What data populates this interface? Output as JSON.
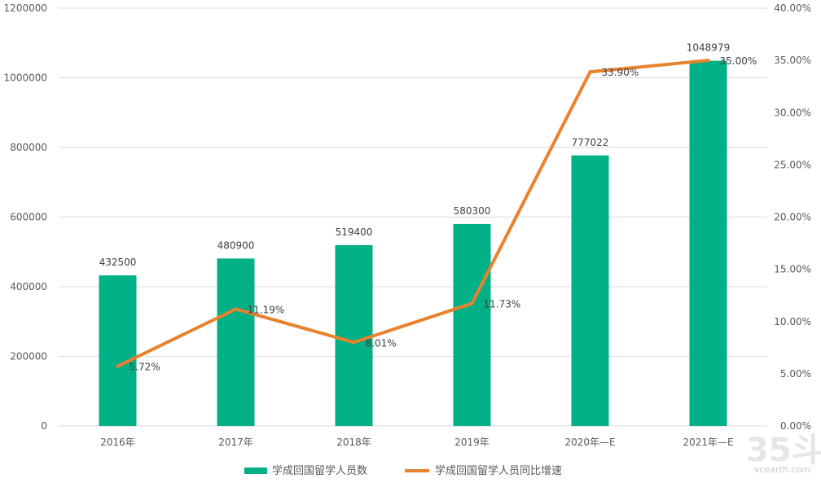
{
  "chart_data": {
    "type": "bar+line",
    "categories": [
      "2016年",
      "2017年",
      "2018年",
      "2019年",
      "2020年—E",
      "2021年—E"
    ],
    "series": [
      {
        "name": "学成回国留学人员数",
        "type": "bar",
        "axis": "left",
        "color": "#00B086",
        "values": [
          432500,
          480900,
          519400,
          580300,
          777022,
          1048979
        ],
        "labels": [
          "432500",
          "480900",
          "519400",
          "580300",
          "777022",
          "1048979"
        ]
      },
      {
        "name": "学成回国留学人员同比增速",
        "type": "line",
        "axis": "right",
        "color": "#E8822C",
        "values": [
          5.72,
          11.19,
          8.01,
          11.73,
          33.9,
          35.0
        ],
        "labels": [
          "5.72%",
          "11.19%",
          "8.01%",
          "11.73%",
          "33.90%",
          "35.00%"
        ]
      }
    ],
    "left_axis": {
      "ylim": [
        0,
        1200000
      ],
      "ticks": [
        "0",
        "200000",
        "400000",
        "600000",
        "800000",
        "1000000",
        "1200000"
      ]
    },
    "right_axis": {
      "ylim": [
        0,
        40
      ],
      "ticks": [
        "0.00%",
        "5.00%",
        "10.00%",
        "15.00%",
        "20.00%",
        "25.00%",
        "30.00%",
        "35.00%",
        "40.00%"
      ]
    },
    "grid": true,
    "legend_position": "bottom"
  },
  "watermark": {
    "logo": "35斗",
    "site": "vcearth.com"
  }
}
